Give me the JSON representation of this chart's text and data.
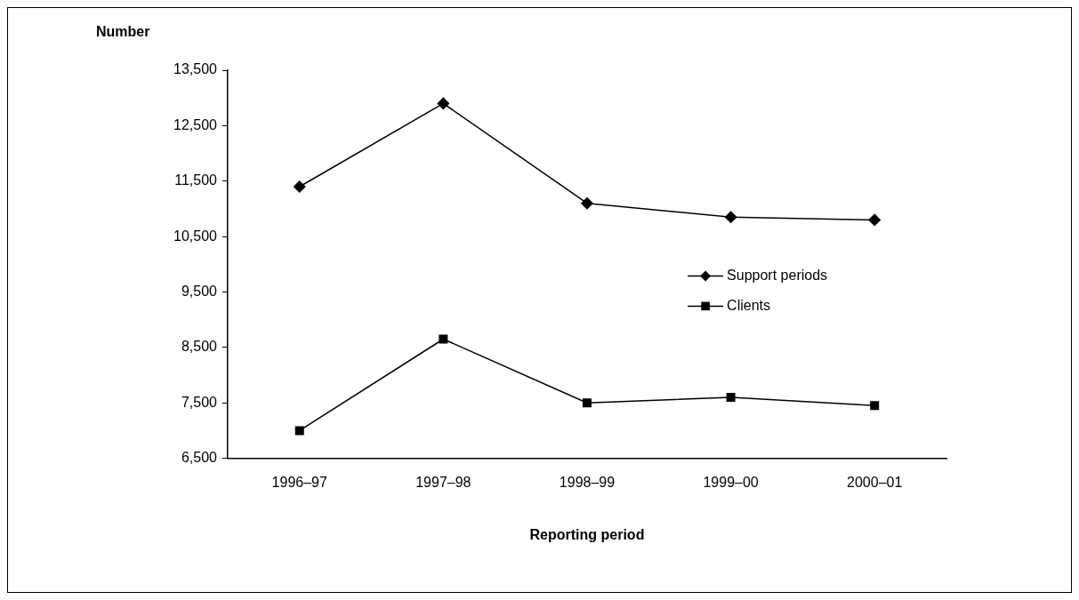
{
  "chart_data": {
    "type": "line",
    "ylabel": "Number",
    "xlabel": "Reporting period",
    "categories": [
      "1996–97",
      "1997–98",
      "1998–99",
      "1999–00",
      "2000–01"
    ],
    "series": [
      {
        "name": "Support periods",
        "color": "#000000",
        "marker": "diamond",
        "values": [
          11400,
          12900,
          11100,
          10850,
          10800
        ]
      },
      {
        "name": "Clients",
        "color": "#000000",
        "marker": "square",
        "values": [
          7000,
          8650,
          7500,
          7600,
          7450
        ]
      }
    ],
    "ylim": [
      6500,
      13500
    ],
    "yticks": [
      {
        "value": 6500,
        "label": "6,500"
      },
      {
        "value": 7500,
        "label": "7,500"
      },
      {
        "value": 8500,
        "label": "8,500"
      },
      {
        "value": 9500,
        "label": "9,500"
      },
      {
        "value": 10500,
        "label": "10,500"
      },
      {
        "value": 11500,
        "label": "11,500"
      },
      {
        "value": 12500,
        "label": "12,500"
      },
      {
        "value": 13500,
        "label": "13,500"
      }
    ],
    "grid": false,
    "legend": "right",
    "line_style": "solid"
  }
}
